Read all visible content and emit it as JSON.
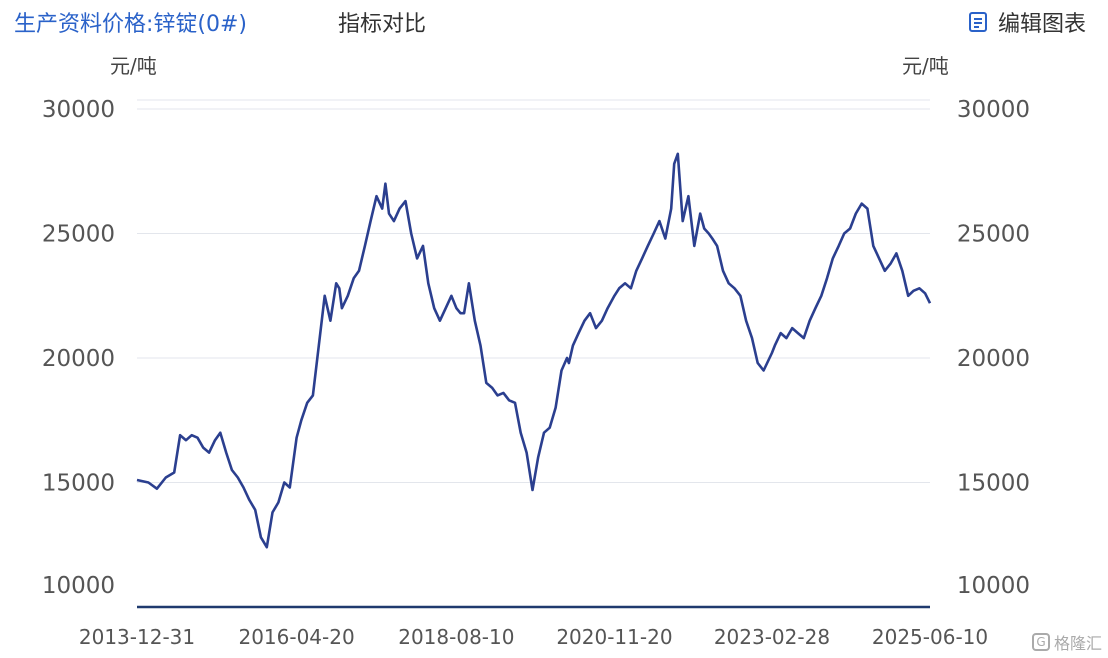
{
  "header": {
    "title": "生产资料价格:锌锭(0#)",
    "compare_tab": "指标对比",
    "edit_label": "编辑图表"
  },
  "watermark": {
    "icon": "G",
    "text": "格隆汇"
  },
  "colors": {
    "title": "#2a62c9",
    "line": "#2b3f8f",
    "grid": "#e3e6ec",
    "baseline": "#1f3a6e"
  },
  "chart_data": {
    "type": "line",
    "title": "",
    "ylabel_left": "元/吨",
    "ylabel_right": "元/吨",
    "ylim": [
      10000,
      30000
    ],
    "yticks": [
      30000,
      25000,
      20000,
      15000,
      10000
    ],
    "xtick_labels": [
      "2013-12-31",
      "2016-04-20",
      "2018-08-10",
      "2020-11-20",
      "2023-02-28",
      "2025-06-10"
    ],
    "grid": true,
    "legend": "none",
    "series": [
      {
        "x": [
          "2013-12-31",
          "2014-03-01",
          "2014-04-15",
          "2014-06-01",
          "2014-07-15",
          "2014-08-15",
          "2014-09-15",
          "2014-10-15",
          "2014-11-15",
          "2014-12-15",
          "2015-01-15",
          "2015-02-15",
          "2015-03-15",
          "2015-04-15",
          "2015-05-15",
          "2015-06-15",
          "2015-07-15",
          "2015-08-15",
          "2015-09-15",
          "2015-10-15",
          "2015-11-15",
          "2015-12-15",
          "2016-01-15",
          "2016-02-15",
          "2016-03-15",
          "2016-04-20",
          "2016-05-15",
          "2016-06-15",
          "2016-07-15",
          "2016-08-15",
          "2016-09-15",
          "2016-10-15",
          "2016-11-15",
          "2016-12-01",
          "2016-12-15",
          "2017-01-15",
          "2017-02-15",
          "2017-03-15",
          "2017-04-15",
          "2017-05-15",
          "2017-06-15",
          "2017-07-15",
          "2017-08-01",
          "2017-08-20",
          "2017-09-15",
          "2017-10-15",
          "2017-11-15",
          "2017-12-15",
          "2018-01-15",
          "2018-02-15",
          "2018-03-15",
          "2018-04-15",
          "2018-05-15",
          "2018-06-15",
          "2018-07-15",
          "2018-08-10",
          "2018-09-01",
          "2018-09-20",
          "2018-10-15",
          "2018-11-15",
          "2018-12-15",
          "2019-01-15",
          "2019-02-15",
          "2019-03-15",
          "2019-04-15",
          "2019-05-15",
          "2019-06-15",
          "2019-07-15",
          "2019-08-15",
          "2019-09-15",
          "2019-10-15",
          "2019-11-15",
          "2019-12-15",
          "2020-01-15",
          "2020-02-15",
          "2020-03-15",
          "2020-03-25",
          "2020-04-15",
          "2020-05-15",
          "2020-06-15",
          "2020-07-15",
          "2020-08-15",
          "2020-09-15",
          "2020-10-15",
          "2020-11-20",
          "2020-12-15",
          "2021-01-15",
          "2021-02-15",
          "2021-03-15",
          "2021-04-15",
          "2021-05-15",
          "2021-06-15",
          "2021-07-15",
          "2021-08-15",
          "2021-09-15",
          "2021-10-01",
          "2021-10-20",
          "2021-11-15",
          "2021-12-15",
          "2022-01-15",
          "2022-02-15",
          "2022-03-08",
          "2022-04-01",
          "2022-04-20",
          "2022-05-15",
          "2022-06-15",
          "2022-07-15",
          "2022-08-15",
          "2022-09-15",
          "2022-10-15",
          "2022-11-15",
          "2022-12-15",
          "2023-01-15",
          "2023-02-28",
          "2023-03-15",
          "2023-04-15",
          "2023-05-15",
          "2023-06-15",
          "2023-07-15",
          "2023-08-15",
          "2023-09-15",
          "2023-10-15",
          "2023-11-15",
          "2023-12-15",
          "2024-01-15",
          "2024-02-15",
          "2024-03-15",
          "2024-04-15",
          "2024-05-15",
          "2024-06-15",
          "2024-07-15",
          "2024-08-15",
          "2024-09-15",
          "2024-10-15",
          "2024-11-15",
          "2024-12-15",
          "2025-01-15",
          "2025-02-15",
          "2025-03-15",
          "2025-04-15",
          "2025-05-15",
          "2025-06-10"
        ],
        "values": [
          15100,
          15000,
          14750,
          15200,
          15400,
          16900,
          16700,
          16900,
          16800,
          16400,
          16200,
          16700,
          17000,
          16200,
          15500,
          15200,
          14800,
          14300,
          13900,
          12800,
          12400,
          13800,
          14200,
          15000,
          14800,
          16800,
          17500,
          18200,
          18500,
          20500,
          22500,
          21500,
          23000,
          22800,
          22000,
          22500,
          23200,
          23500,
          24500,
          25500,
          26500,
          26000,
          27000,
          25800,
          25500,
          26000,
          26300,
          25000,
          24000,
          24500,
          23000,
          22000,
          21500,
          22000,
          22500,
          22000,
          21800,
          21800,
          23000,
          21500,
          20500,
          19000,
          18800,
          18500,
          18600,
          18300,
          18200,
          17000,
          16200,
          14700,
          16000,
          17000,
          17200,
          18000,
          19500,
          20000,
          19800,
          20500,
          21000,
          21500,
          21800,
          21200,
          21500,
          22000,
          22500,
          22800,
          23000,
          22800,
          23500,
          24000,
          24500,
          25000,
          25500,
          24800,
          26000,
          27800,
          28200,
          25500,
          26500,
          24500,
          25800,
          25200,
          25000,
          24800,
          24500,
          23500,
          23000,
          22800,
          22500,
          21500,
          20800,
          19800,
          19500,
          20200,
          20500,
          21000,
          20800,
          21200,
          21000,
          20800,
          21500,
          22000,
          22500,
          23200,
          24000,
          24500,
          25000,
          25200,
          25800,
          26200,
          26000,
          24500,
          24000,
          23500,
          23800,
          24200,
          23500,
          22500,
          22700,
          22800,
          22600,
          22200
        ]
      }
    ]
  }
}
